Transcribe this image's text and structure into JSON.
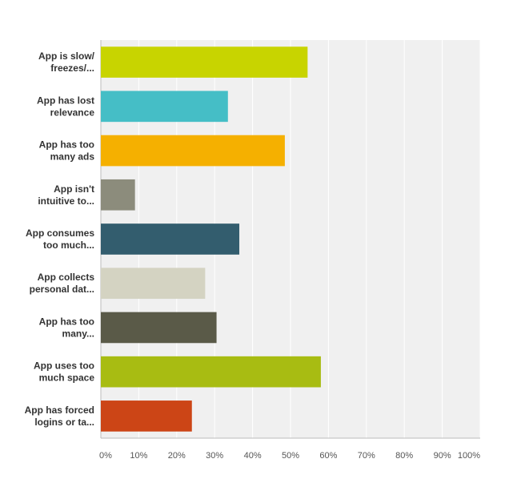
{
  "chart_data": {
    "type": "bar",
    "orientation": "horizontal",
    "categories": [
      [
        "App is slow/",
        "freezes/..."
      ],
      [
        "App has lost",
        "relevance"
      ],
      [
        "App has too",
        "many ads"
      ],
      [
        "App isn't",
        "intuitive to..."
      ],
      [
        "App consumes",
        "too much..."
      ],
      [
        "App collects",
        "personal dat..."
      ],
      [
        "App has too",
        "many..."
      ],
      [
        "App uses too",
        "much space"
      ],
      [
        "App has forced",
        "logins or ta..."
      ]
    ],
    "values": [
      54.5,
      33.5,
      48.5,
      9,
      36.5,
      27.5,
      30.5,
      58,
      24
    ],
    "colors": [
      "#c8d400",
      "#45bec6",
      "#f5b000",
      "#8c8c7c",
      "#335d6e",
      "#d4d3c2",
      "#5a5a48",
      "#a8bc12",
      "#cc4516"
    ],
    "xlim": [
      0,
      100
    ],
    "xticks": [
      "0%",
      "10%",
      "20%",
      "30%",
      "40%",
      "50%",
      "60%",
      "70%",
      "80%",
      "90%",
      "100%"
    ],
    "title": "",
    "xlabel": "",
    "ylabel": "",
    "grid": "vertical",
    "background": "#f0f0f0",
    "gridline_color": "#ffffff"
  }
}
